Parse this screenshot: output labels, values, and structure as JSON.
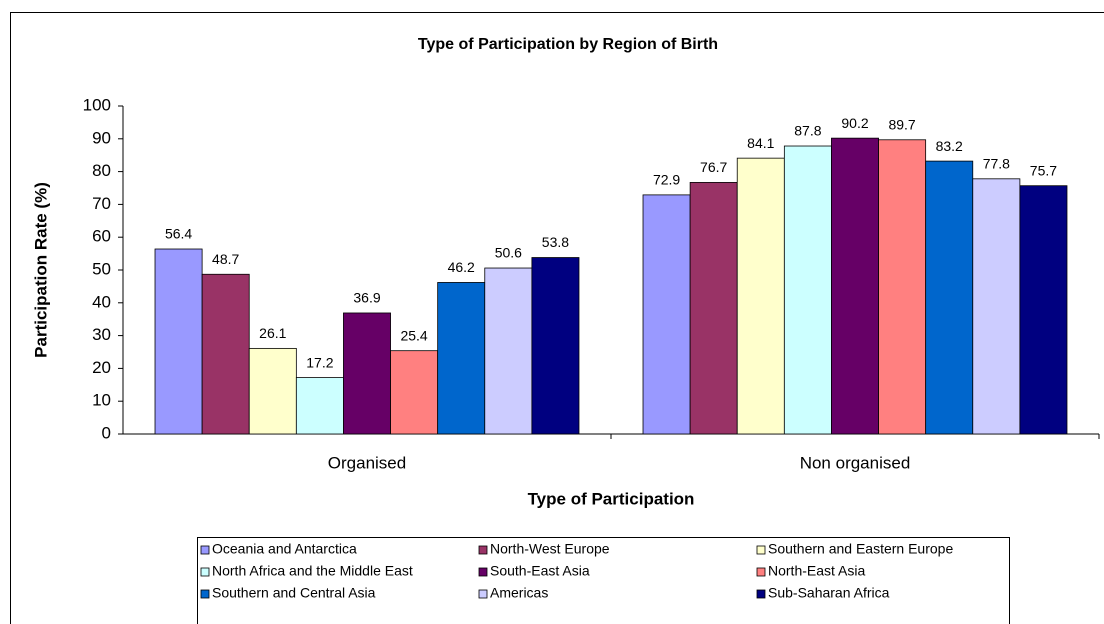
{
  "chart_data": {
    "type": "bar",
    "title": "Type of Participation by Region of Birth",
    "x_label": "Type of Participation",
    "y_label": "Participation Rate (%)",
    "categories": [
      "Organised",
      "Non organised"
    ],
    "series": [
      {
        "name": "Oceania and Antarctica",
        "color": "#9999FF",
        "values": [
          56.4,
          72.9
        ]
      },
      {
        "name": "North-West Europe",
        "color": "#993366",
        "values": [
          48.7,
          76.7
        ]
      },
      {
        "name": "Southern and Eastern Europe",
        "color": "#FFFFCC",
        "values": [
          26.1,
          84.1
        ]
      },
      {
        "name": "North Africa and the Middle East",
        "color": "#CCFFFF",
        "values": [
          17.2,
          87.8
        ]
      },
      {
        "name": "South-East Asia",
        "color": "#660066",
        "values": [
          36.9,
          90.2
        ]
      },
      {
        "name": "North-East Asia",
        "color": "#FF8080",
        "values": [
          25.4,
          89.7
        ]
      },
      {
        "name": "Southern and Central Asia",
        "color": "#0066CC",
        "values": [
          46.2,
          83.2
        ]
      },
      {
        "name": "Americas",
        "color": "#CCCCFF",
        "values": [
          50.6,
          77.8
        ]
      },
      {
        "name": "Sub-Saharan Africa",
        "color": "#000080",
        "values": [
          53.8,
          75.7
        ]
      }
    ],
    "ylim": [
      0,
      100
    ],
    "yticks": [
      0,
      10,
      20,
      30,
      40,
      50,
      60,
      70,
      80,
      90,
      100
    ],
    "grid": false,
    "legend": "bottom"
  }
}
